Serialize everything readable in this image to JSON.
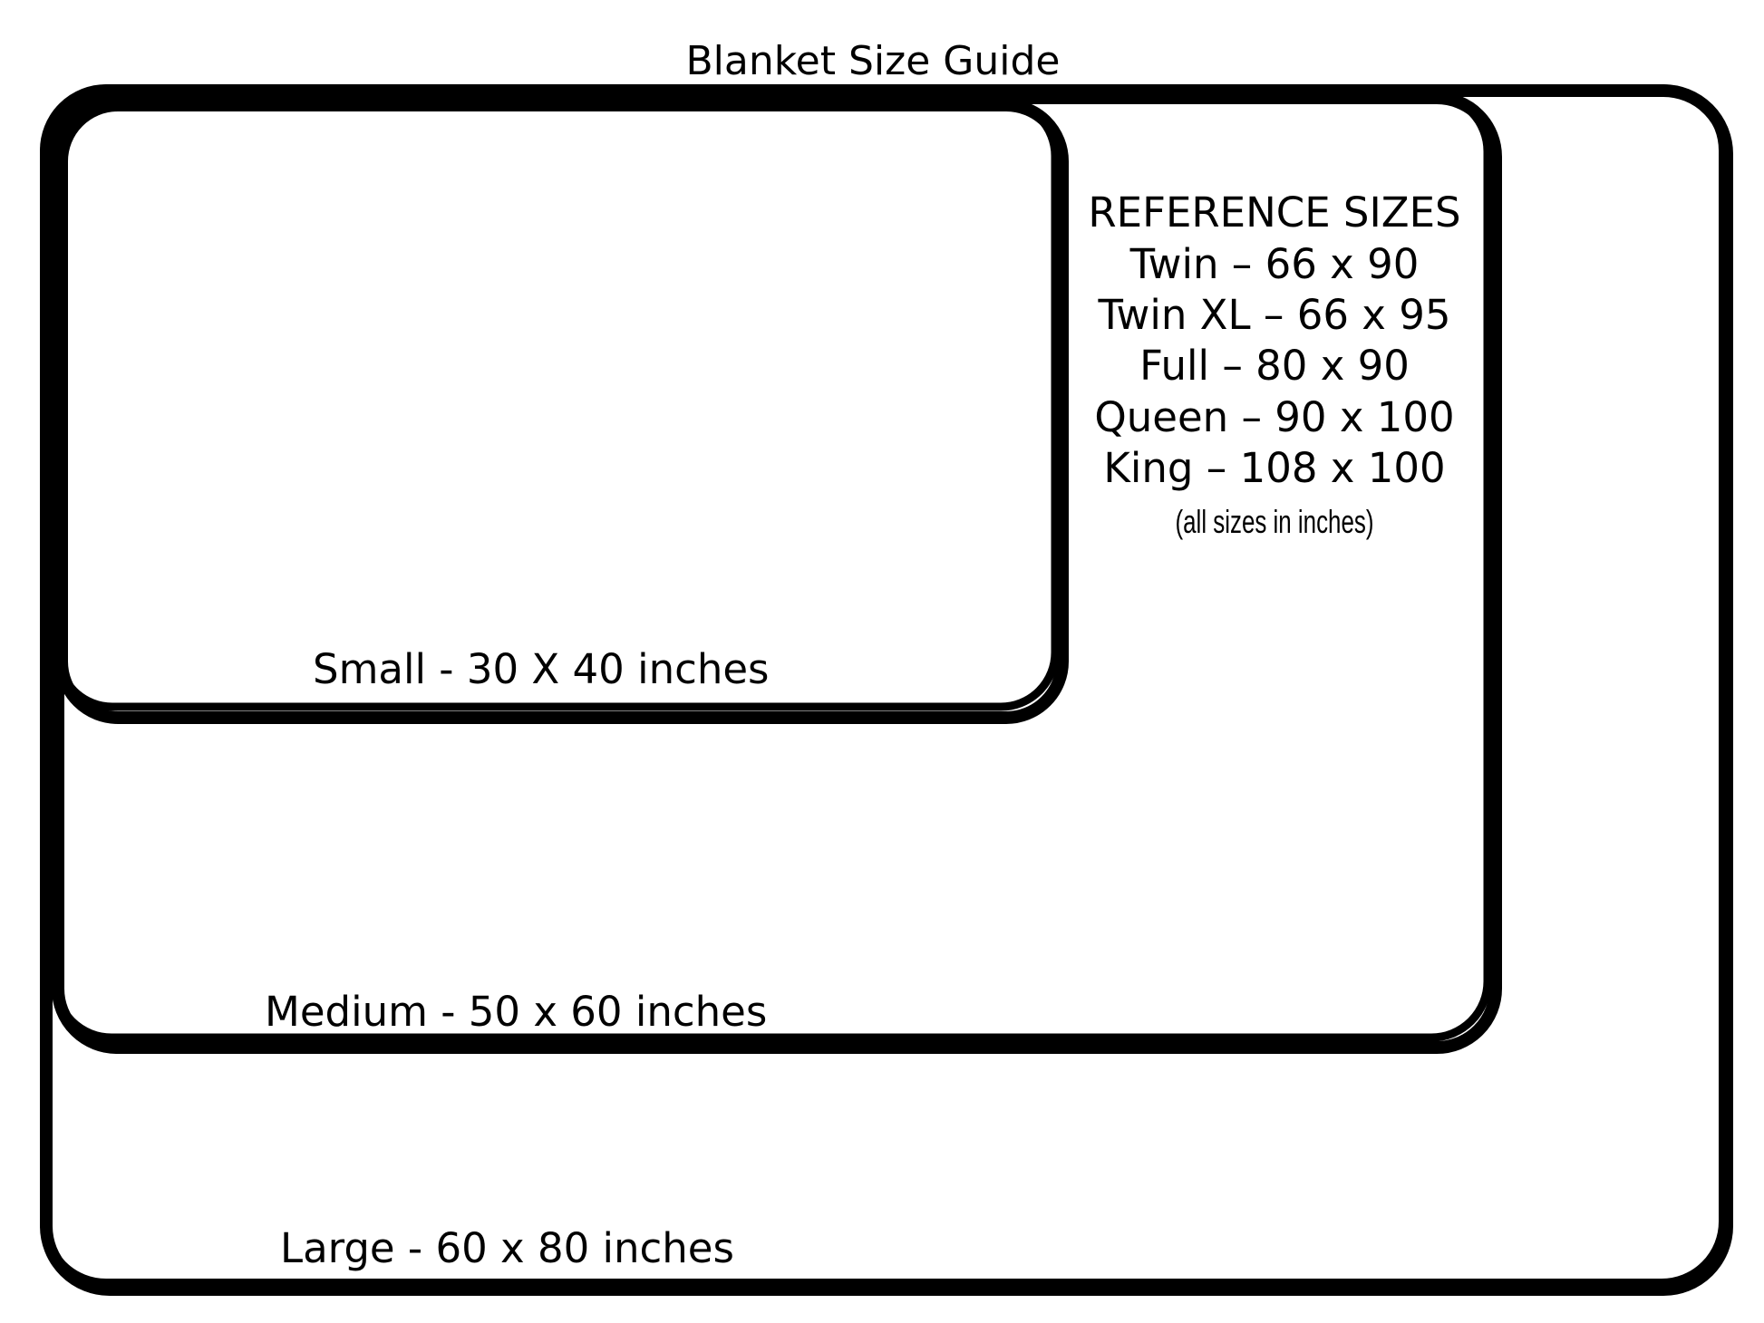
{
  "title": "Blanket Size Guide",
  "sizes": [
    {
      "label": "Small - 30 X 40 inches",
      "width_in": 30,
      "length_in": 40
    },
    {
      "label": "Medium - 50 x 60 inches",
      "width_in": 50,
      "length_in": 60
    },
    {
      "label": "Large - 60 x 80 inches",
      "width_in": 60,
      "length_in": 80
    }
  ],
  "reference": {
    "heading": "REFERENCE SIZES",
    "items": [
      "Twin – 66 x 90",
      "Twin XL – 66 x 95",
      "Full – 80 x 90",
      "Queen – 90 x 100",
      "King – 108 x 100"
    ],
    "note": "(all sizes in inches)"
  }
}
